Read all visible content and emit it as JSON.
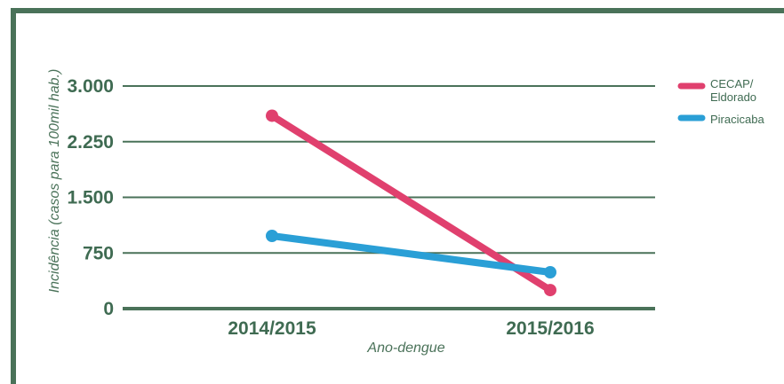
{
  "chart_data": {
    "type": "line",
    "categories": [
      "2014/2015",
      "2015/2016"
    ],
    "series": [
      {
        "name": "CECAP/ Eldorado",
        "values": [
          2600,
          250
        ],
        "color": "#e0406e"
      },
      {
        "name": "Piracicaba",
        "values": [
          980,
          490
        ],
        "color": "#2a9fd6"
      }
    ],
    "xlabel": "Ano-dengue",
    "ylabel": "Incidência (casos para 100mil hab.)",
    "ylim": [
      0,
      3000
    ],
    "yticks": [
      0,
      750,
      1500,
      2250,
      3000
    ],
    "ytick_labels": [
      "0",
      "750",
      "1.500",
      "2.250",
      "3.000"
    ],
    "legend_labels": [
      [
        "CECAP/",
        "Eldorado"
      ],
      [
        "Piracicaba"
      ]
    ],
    "grid": true,
    "legend_position": "top-right",
    "colors": {
      "frame": "#4a7259",
      "grid": "#4a7259",
      "text": "#3f6b52"
    }
  }
}
